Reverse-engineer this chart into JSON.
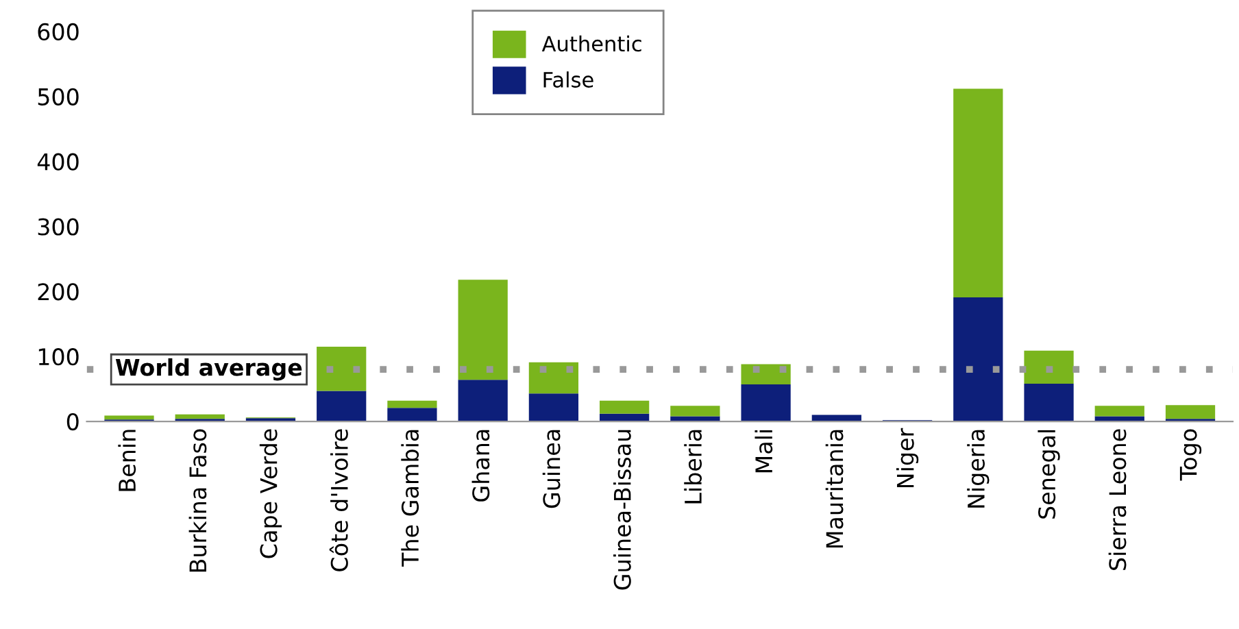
{
  "chart_data": {
    "type": "bar",
    "stacked": true,
    "categories": [
      "Benin",
      "Burkina Faso",
      "Cape Verde",
      "Côte d'Ivoire",
      "The Gambia",
      "Ghana",
      "Guinea",
      "Guinea-Bissau",
      "Liberia",
      "Mali",
      "Mauritania",
      "Niger",
      "Nigeria",
      "Senegal",
      "Sierra Leone",
      "Togo"
    ],
    "series": [
      {
        "name": "False",
        "color": "#0d1f7a",
        "values": [
          3,
          4,
          5,
          47,
          21,
          64,
          43,
          12,
          8,
          57,
          10,
          2,
          191,
          58,
          8,
          4
        ]
      },
      {
        "name": "Authentic",
        "color": "#7ab51d",
        "values": [
          6,
          7,
          1,
          68,
          11,
          154,
          48,
          20,
          16,
          31,
          0,
          0,
          321,
          51,
          16,
          21
        ]
      }
    ],
    "ylim": [
      0,
      600
    ],
    "yticks": [
      0,
      100,
      200,
      300,
      400,
      500,
      600
    ],
    "ref_lines": [
      {
        "axis": "y",
        "value": 80,
        "label": "World average",
        "color": "#999999",
        "line_style": "dotted"
      }
    ],
    "legend": "top",
    "grid": false
  }
}
